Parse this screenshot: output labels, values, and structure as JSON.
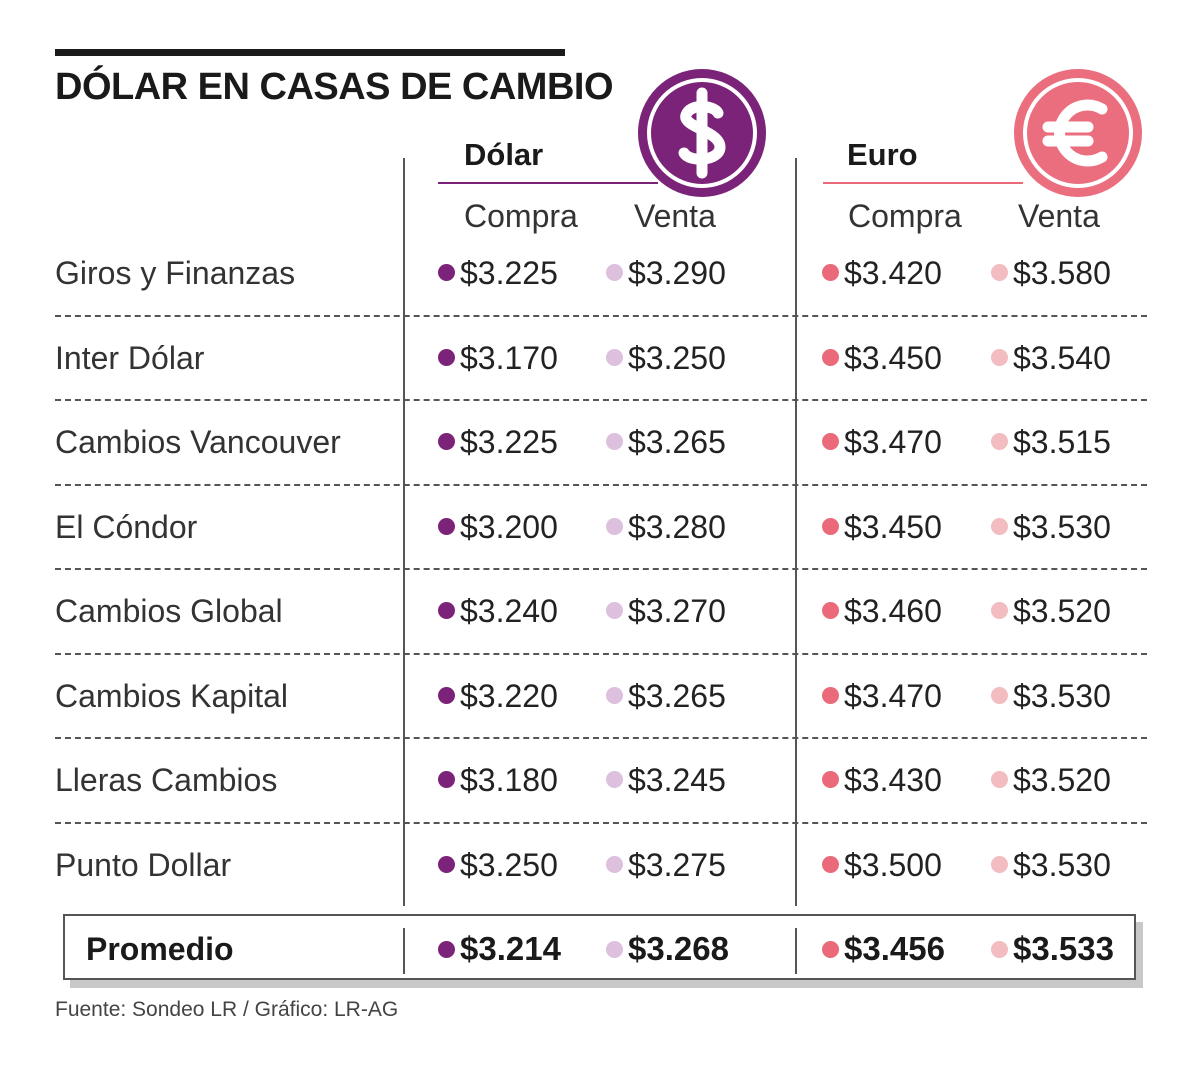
{
  "header": {
    "title": "DÓLAR EN CASAS DE CAMBIO"
  },
  "colors": {
    "dolar_compra": "#7b2378",
    "dolar_venta": "#dcc0de",
    "euro_compra": "#eb6a7a",
    "euro_venta": "#f2bcc0",
    "dolar_badge": "#7b2378",
    "euro_badge": "#eb6e7e"
  },
  "icons": {
    "dolar": "dollar-sign-icon",
    "euro": "euro-sign-icon"
  },
  "chart_data": {
    "type": "table",
    "groups": [
      "Dólar",
      "Euro"
    ],
    "columns": [
      "Compra",
      "Venta",
      "Compra",
      "Venta"
    ],
    "rows": [
      {
        "name": "Giros y Finanzas",
        "values": [
          "$3.225",
          "$3.290",
          "$3.420",
          "$3.580"
        ]
      },
      {
        "name": "Inter Dólar",
        "values": [
          "$3.170",
          "$3.250",
          "$3.450",
          "$3.540"
        ]
      },
      {
        "name": "Cambios Vancouver",
        "values": [
          "$3.225",
          "$3.265",
          "$3.470",
          "$3.515"
        ]
      },
      {
        "name": "El Cóndor",
        "values": [
          "$3.200",
          "$3.280",
          "$3.450",
          "$3.530"
        ]
      },
      {
        "name": "Cambios Global",
        "values": [
          "$3.240",
          "$3.270",
          "$3.460",
          "$3.520"
        ]
      },
      {
        "name": "Cambios Kapital",
        "values": [
          "$3.220",
          "$3.265",
          "$3.470",
          "$3.530"
        ]
      },
      {
        "name": "Lleras Cambios",
        "values": [
          "$3.180",
          "$3.245",
          "$3.430",
          "$3.520"
        ]
      },
      {
        "name": "Punto Dollar",
        "values": [
          "$3.250",
          "$3.275",
          "$3.500",
          "$3.530"
        ]
      }
    ],
    "average": {
      "label": "Promedio",
      "values": [
        "$3.214",
        "$3.268",
        "$3.456",
        "$3.533"
      ]
    }
  },
  "footer": {
    "source": "Fuente: Sondeo LR / Gráfico: LR-AG"
  }
}
